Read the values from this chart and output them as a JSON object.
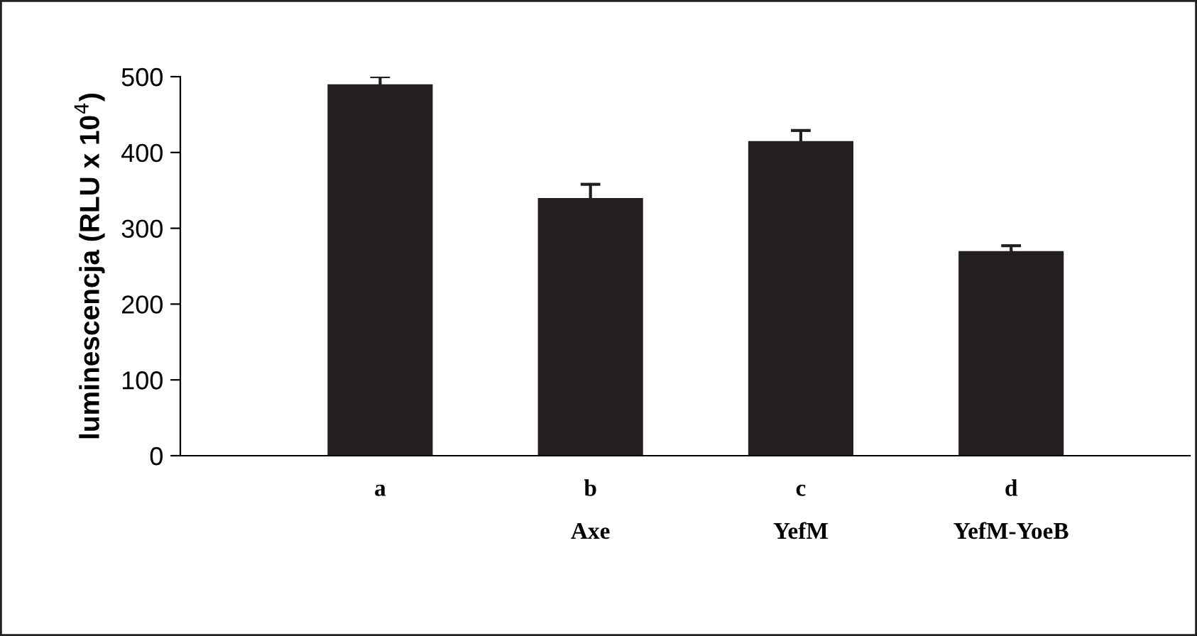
{
  "chart_data": {
    "type": "bar",
    "ylabel": "luminescencja (RLU x 10$^{4}$)",
    "categories": [
      "a",
      "b\n\nAxe",
      "c\n\nYefM",
      "d\n\nYefM-YoeB"
    ],
    "values": [
      490,
      340,
      415,
      270
    ],
    "errors": [
      10,
      18,
      14,
      7
    ],
    "color": "#231f20",
    "ylim": [
      0,
      500
    ],
    "yticks": [
      0,
      100,
      200,
      300,
      400,
      500
    ],
    "grid": false,
    "legend": false
  }
}
